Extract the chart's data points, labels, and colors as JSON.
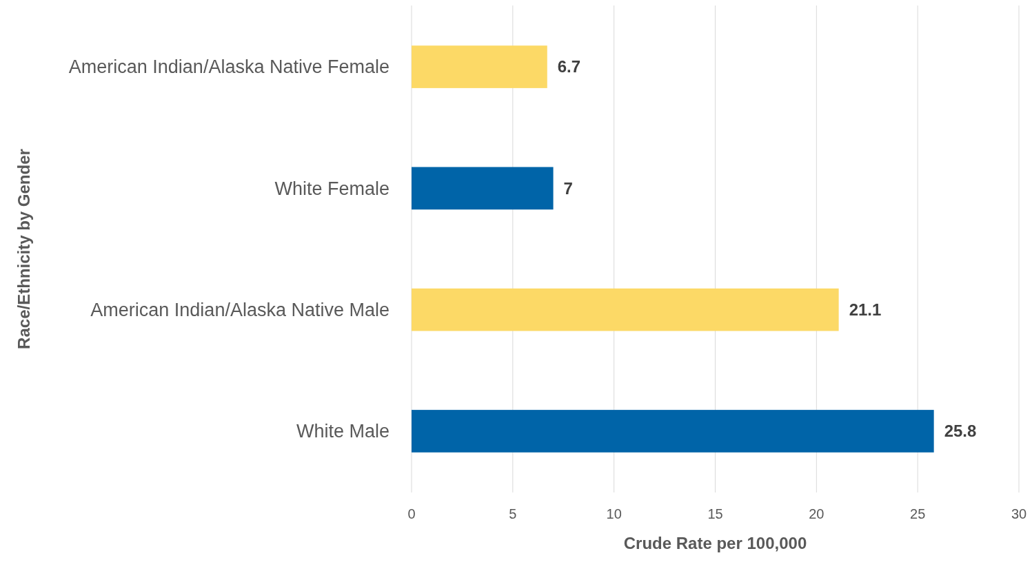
{
  "chart_data": {
    "type": "bar",
    "orientation": "horizontal",
    "xlabel": "Crude Rate per 100,000",
    "ylabel": "Race/Ethnicity by Gender",
    "categories": [
      "American Indian/Alaska Native Female",
      "White Female",
      "American Indian/Alaska Native Male",
      "White Male"
    ],
    "values": [
      6.7,
      7,
      21.1,
      25.8
    ],
    "colors": [
      "#fcd966",
      "#0064a8",
      "#fcd966",
      "#0064a8"
    ],
    "xlim": [
      0,
      30
    ],
    "xticks": [
      0,
      5,
      10,
      15,
      20,
      25,
      30
    ],
    "grid": "x",
    "data_labels": true
  }
}
